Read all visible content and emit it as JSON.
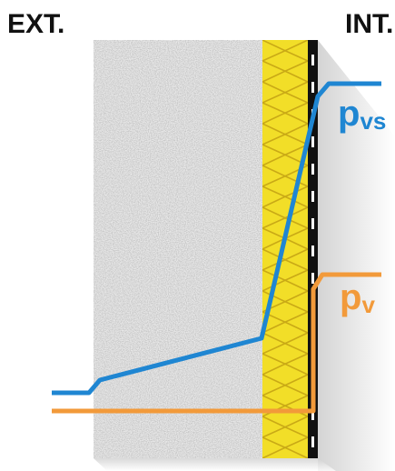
{
  "labels": {
    "exterior": "EXT.",
    "interior": "INT."
  },
  "curves": {
    "saturation": {
      "symbol": "p",
      "subscript": "vs",
      "color": "#1f86d2"
    },
    "vapour": {
      "symbol": "p",
      "subscript": "v",
      "color": "#f29a3a"
    }
  },
  "colors": {
    "concrete": "#e8e8e8",
    "insulation": "#f2de28",
    "insulation_pattern": "#c9a916",
    "membrane": "#111111",
    "shadow": "#d9d9d9"
  }
}
